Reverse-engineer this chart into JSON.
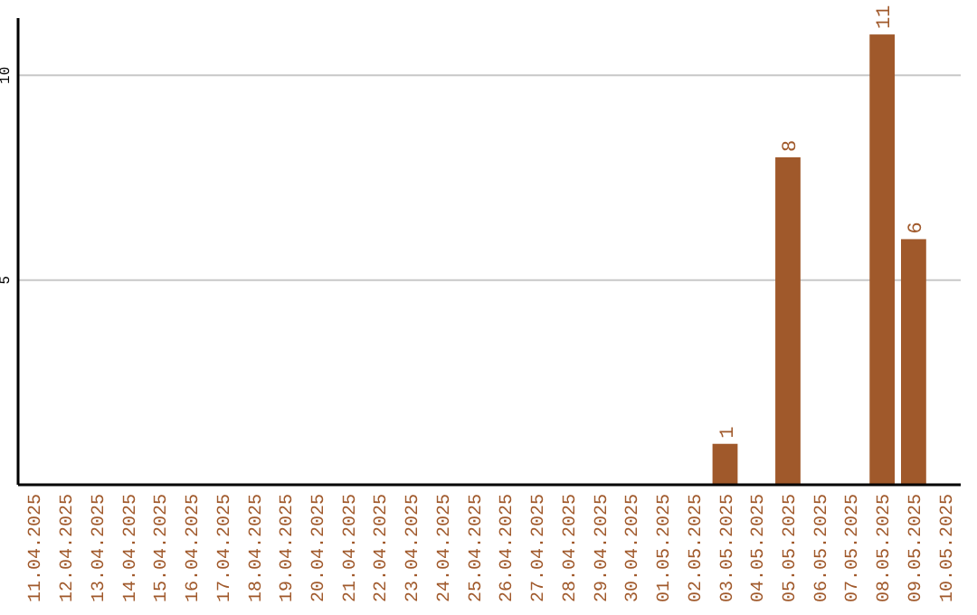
{
  "chart_data": {
    "type": "bar",
    "categories": [
      "11.04.2025",
      "12.04.2025",
      "13.04.2025",
      "14.04.2025",
      "15.04.2025",
      "16.04.2025",
      "17.04.2025",
      "18.04.2025",
      "19.04.2025",
      "20.04.2025",
      "21.04.2025",
      "22.04.2025",
      "23.04.2025",
      "24.04.2025",
      "25.04.2025",
      "26.04.2025",
      "27.04.2025",
      "28.04.2025",
      "29.04.2025",
      "30.04.2025",
      "01.05.2025",
      "02.05.2025",
      "03.05.2025",
      "04.05.2025",
      "05.05.2025",
      "06.05.2025",
      "07.05.2025",
      "08.05.2025",
      "09.05.2025",
      "10.05.2025"
    ],
    "values": [
      0,
      0,
      0,
      0,
      0,
      0,
      0,
      0,
      0,
      0,
      0,
      0,
      0,
      0,
      0,
      0,
      0,
      0,
      0,
      0,
      0,
      0,
      1,
      0,
      8,
      0,
      0,
      11,
      6,
      0
    ],
    "value_labels": [
      null,
      null,
      null,
      null,
      null,
      null,
      null,
      null,
      null,
      null,
      null,
      null,
      null,
      null,
      null,
      null,
      null,
      null,
      null,
      null,
      null,
      null,
      "1",
      null,
      "8",
      null,
      null,
      "11",
      "6",
      null
    ],
    "color": "#a0592b",
    "ylim": [
      0,
      11.4
    ],
    "yticks": [
      5,
      10
    ],
    "grid": "y"
  }
}
